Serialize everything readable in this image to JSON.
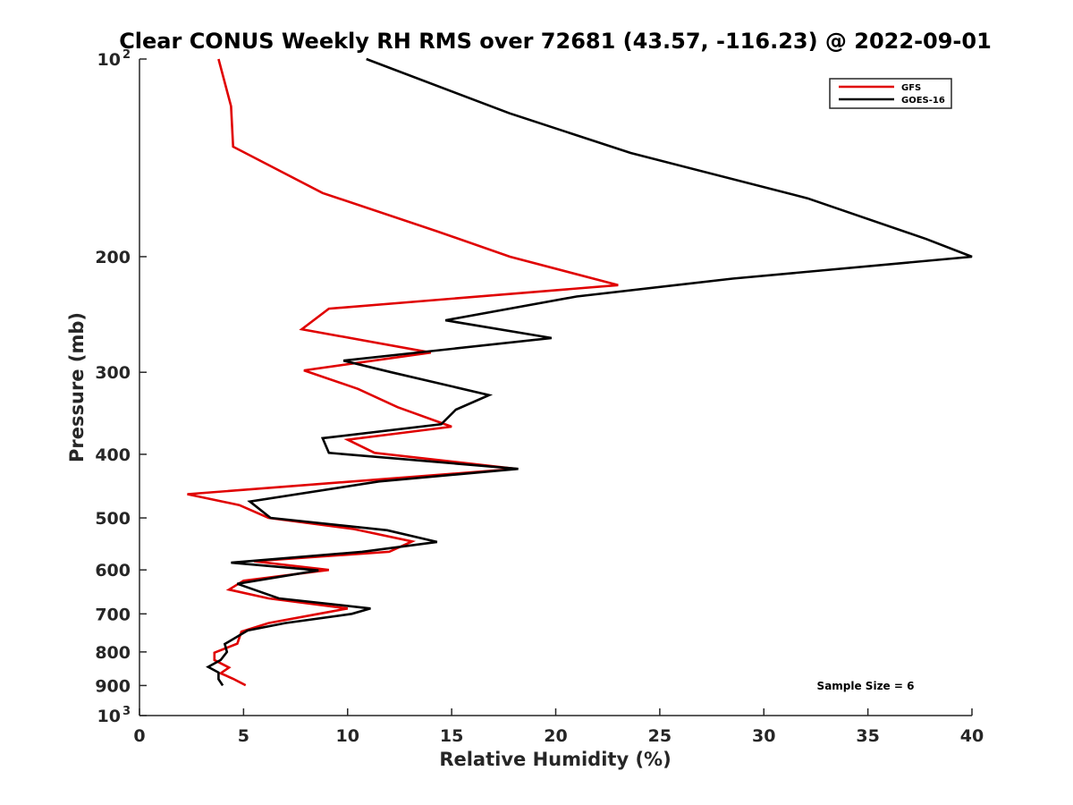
{
  "chart_data": {
    "type": "line",
    "title": "Clear CONUS Weekly RH RMS over 72681 (43.57, -116.23) @ 2022-09-01",
    "xlabel": "Relative Humidity (%)",
    "ylabel": "Pressure (mb)",
    "xlim": [
      0,
      40
    ],
    "ylim": [
      100,
      1000
    ],
    "y_scale": "log",
    "y_reversed": true,
    "grid": false,
    "legend_position": "top-right",
    "x_ticks": [
      "0",
      "5",
      "10",
      "15",
      "20",
      "25",
      "30",
      "35",
      "40"
    ],
    "y_ticks": [
      {
        "value": 100,
        "label": "10",
        "sup": "2"
      },
      {
        "value": 200,
        "label": "200",
        "sup": ""
      },
      {
        "value": 300,
        "label": "300",
        "sup": ""
      },
      {
        "value": 400,
        "label": "400",
        "sup": ""
      },
      {
        "value": 500,
        "label": "500",
        "sup": ""
      },
      {
        "value": 600,
        "label": "600",
        "sup": ""
      },
      {
        "value": 700,
        "label": "700",
        "sup": ""
      },
      {
        "value": 800,
        "label": "800",
        "sup": ""
      },
      {
        "value": 900,
        "label": "900",
        "sup": ""
      },
      {
        "value": 1000,
        "label": "10",
        "sup": "3"
      }
    ],
    "annotation": "Sample Size = 6",
    "series": [
      {
        "name": "GFS",
        "color": "#e00000",
        "points": [
          [
            3.8,
            100
          ],
          [
            4.4,
            118
          ],
          [
            4.5,
            136
          ],
          [
            8.8,
            160
          ],
          [
            14.3,
            183
          ],
          [
            17.8,
            200
          ],
          [
            23.0,
            221
          ],
          [
            9.1,
            240
          ],
          [
            7.8,
            258
          ],
          [
            14.0,
            280
          ],
          [
            7.9,
            298
          ],
          [
            10.5,
            318
          ],
          [
            12.4,
            339
          ],
          [
            15.0,
            363
          ],
          [
            10.0,
            380
          ],
          [
            11.3,
            398
          ],
          [
            18.1,
            421
          ],
          [
            2.3,
            460
          ],
          [
            4.8,
            478
          ],
          [
            6.2,
            500
          ],
          [
            10.3,
            520
          ],
          [
            13.1,
            543
          ],
          [
            12.0,
            563
          ],
          [
            5.5,
            582
          ],
          [
            9.1,
            600
          ],
          [
            5.0,
            623
          ],
          [
            4.3,
            643
          ],
          [
            6.2,
            663
          ],
          [
            10.0,
            687
          ],
          [
            8.6,
            700
          ],
          [
            6.2,
            723
          ],
          [
            4.9,
            745
          ],
          [
            4.7,
            777
          ],
          [
            3.6,
            802
          ],
          [
            3.6,
            823
          ],
          [
            4.3,
            845
          ],
          [
            3.9,
            862
          ],
          [
            4.5,
            879
          ],
          [
            5.1,
            899
          ]
        ]
      },
      {
        "name": "GOES-16",
        "color": "#000000",
        "points": [
          [
            10.9,
            100
          ],
          [
            17.8,
            121
          ],
          [
            23.6,
            139
          ],
          [
            32.1,
            163
          ],
          [
            37.8,
            188
          ],
          [
            40.0,
            200
          ],
          [
            28.5,
            216
          ],
          [
            21.0,
            230
          ],
          [
            14.7,
            250
          ],
          [
            19.8,
            266
          ],
          [
            9.8,
            288
          ],
          [
            12.1,
            300
          ],
          [
            16.8,
            325
          ],
          [
            15.2,
            342
          ],
          [
            14.5,
            360
          ],
          [
            8.8,
            378
          ],
          [
            9.1,
            398
          ],
          [
            18.2,
            421
          ],
          [
            11.5,
            440
          ],
          [
            5.3,
            472
          ],
          [
            6.3,
            500
          ],
          [
            11.9,
            522
          ],
          [
            14.3,
            544
          ],
          [
            10.7,
            563
          ],
          [
            4.4,
            585
          ],
          [
            8.6,
            601
          ],
          [
            4.7,
            630
          ],
          [
            6.7,
            663
          ],
          [
            11.1,
            687
          ],
          [
            10.2,
            700
          ],
          [
            7.0,
            723
          ],
          [
            5.2,
            742
          ],
          [
            4.1,
            778
          ],
          [
            4.2,
            800
          ],
          [
            3.9,
            823
          ],
          [
            3.3,
            843
          ],
          [
            3.8,
            860
          ],
          [
            3.8,
            880
          ],
          [
            4.0,
            900
          ]
        ]
      }
    ]
  }
}
